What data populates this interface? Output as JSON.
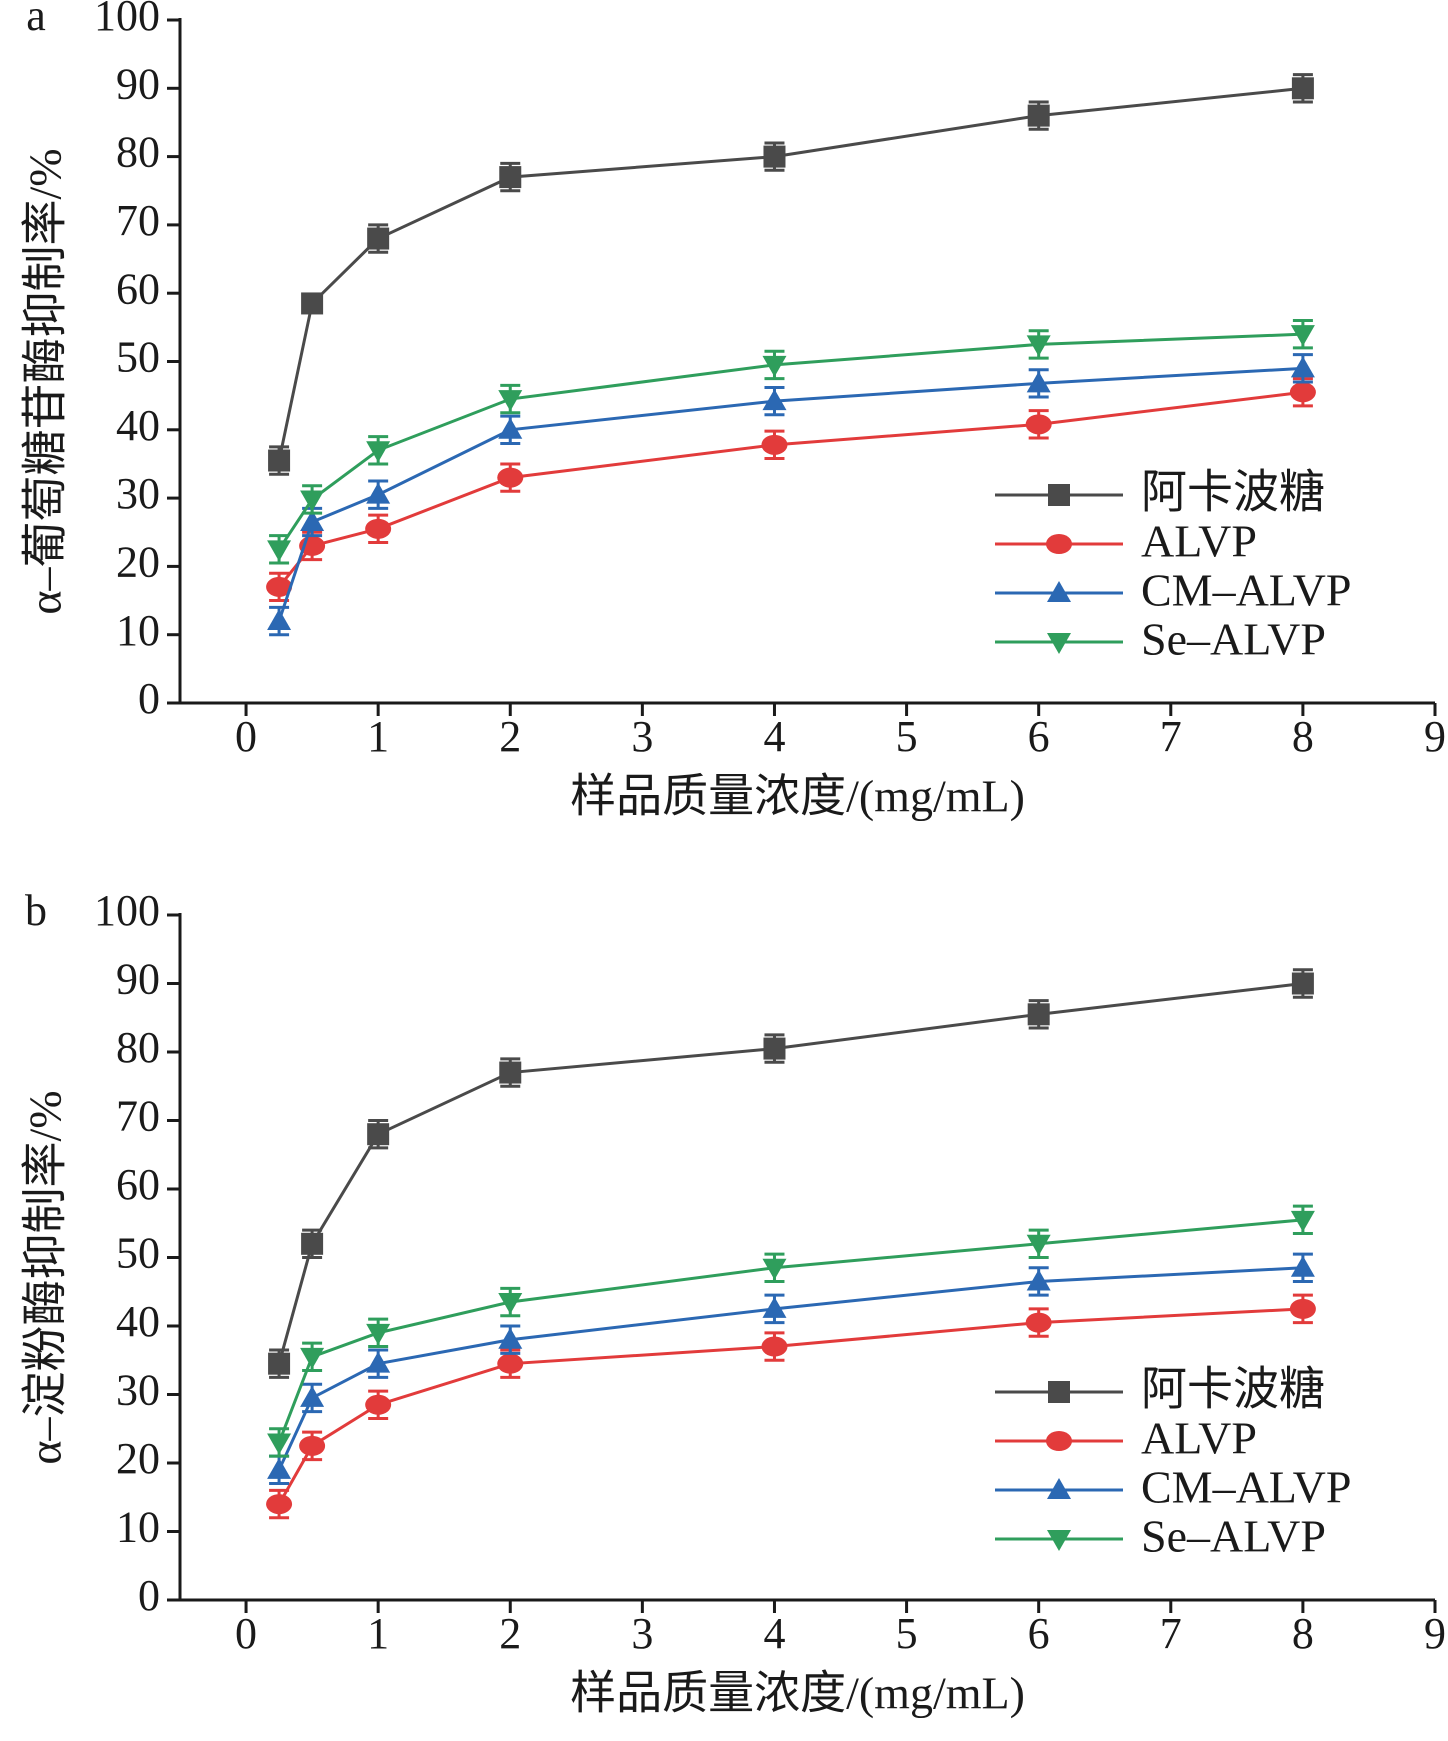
{
  "chart_data": [
    {
      "type": "line",
      "panel_label": "a",
      "xlabel": "样品质量浓度/(mg/mL)",
      "ylabel": "α–葡萄糖苷酶抑制率/%",
      "x": [
        0.25,
        0.5,
        1,
        2,
        4,
        6,
        8
      ],
      "xlim": [
        -0.5,
        9
      ],
      "xticks": [
        0,
        1,
        2,
        3,
        4,
        5,
        6,
        7,
        8,
        9
      ],
      "ylim": [
        0,
        100
      ],
      "yticks": [
        0,
        10,
        20,
        30,
        40,
        50,
        60,
        70,
        80,
        90,
        100
      ],
      "legend": "lower right",
      "series": [
        {
          "name": "阿卡波糖",
          "color": "#4a4a4a",
          "marker": "square",
          "values": [
            35.5,
            58.5,
            68,
            77,
            80,
            86,
            90
          ],
          "errors": [
            2,
            1,
            2,
            2,
            2,
            2,
            2
          ]
        },
        {
          "name": "ALVP",
          "color": "#e23b3b",
          "marker": "circle",
          "values": [
            17,
            23,
            25.5,
            33,
            37.8,
            40.8,
            45.5
          ],
          "errors": [
            2,
            2,
            2,
            2,
            2,
            2,
            2
          ]
        },
        {
          "name": "CM–ALVP",
          "color": "#2b68b3",
          "marker": "triangle-up",
          "values": [
            12,
            26.5,
            30.5,
            40,
            44.2,
            46.8,
            49
          ],
          "errors": [
            2,
            2,
            2,
            2,
            2,
            2,
            2
          ]
        },
        {
          "name": "Se–ALVP",
          "color": "#2f9e5c",
          "marker": "triangle-down",
          "values": [
            22.5,
            29.8,
            37,
            44.5,
            49.5,
            52.5,
            54
          ],
          "errors": [
            2,
            2,
            2,
            2,
            2,
            2,
            2
          ]
        }
      ]
    },
    {
      "type": "line",
      "panel_label": "b",
      "xlabel": "样品质量浓度/(mg/mL)",
      "ylabel": "α–淀粉酶抑制率/%",
      "x": [
        0.25,
        0.5,
        1,
        2,
        4,
        6,
        8
      ],
      "xlim": [
        -0.5,
        9
      ],
      "xticks": [
        0,
        1,
        2,
        3,
        4,
        5,
        6,
        7,
        8,
        9
      ],
      "ylim": [
        0,
        100
      ],
      "yticks": [
        0,
        10,
        20,
        30,
        40,
        50,
        60,
        70,
        80,
        90,
        100
      ],
      "legend": "lower right",
      "series": [
        {
          "name": "阿卡波糖",
          "color": "#4a4a4a",
          "marker": "square",
          "values": [
            34.5,
            52,
            68,
            77,
            80.5,
            85.5,
            90
          ],
          "errors": [
            2,
            2,
            2,
            2,
            2,
            2,
            2
          ]
        },
        {
          "name": "ALVP",
          "color": "#e23b3b",
          "marker": "circle",
          "values": [
            14,
            22.5,
            28.5,
            34.5,
            37,
            40.5,
            42.5
          ],
          "errors": [
            2,
            2,
            2,
            2,
            2,
            2,
            2
          ]
        },
        {
          "name": "CM–ALVP",
          "color": "#2b68b3",
          "marker": "triangle-up",
          "values": [
            19,
            29.5,
            34.5,
            38,
            42.5,
            46.5,
            48.5
          ],
          "errors": [
            2,
            2,
            2,
            2,
            2,
            2,
            2
          ]
        },
        {
          "name": "Se–ALVP",
          "color": "#2f9e5c",
          "marker": "triangle-down",
          "values": [
            23,
            35.5,
            39,
            43.5,
            48.5,
            52,
            55.5
          ],
          "errors": [
            2,
            2,
            2,
            2,
            2,
            2,
            2
          ]
        }
      ]
    }
  ]
}
